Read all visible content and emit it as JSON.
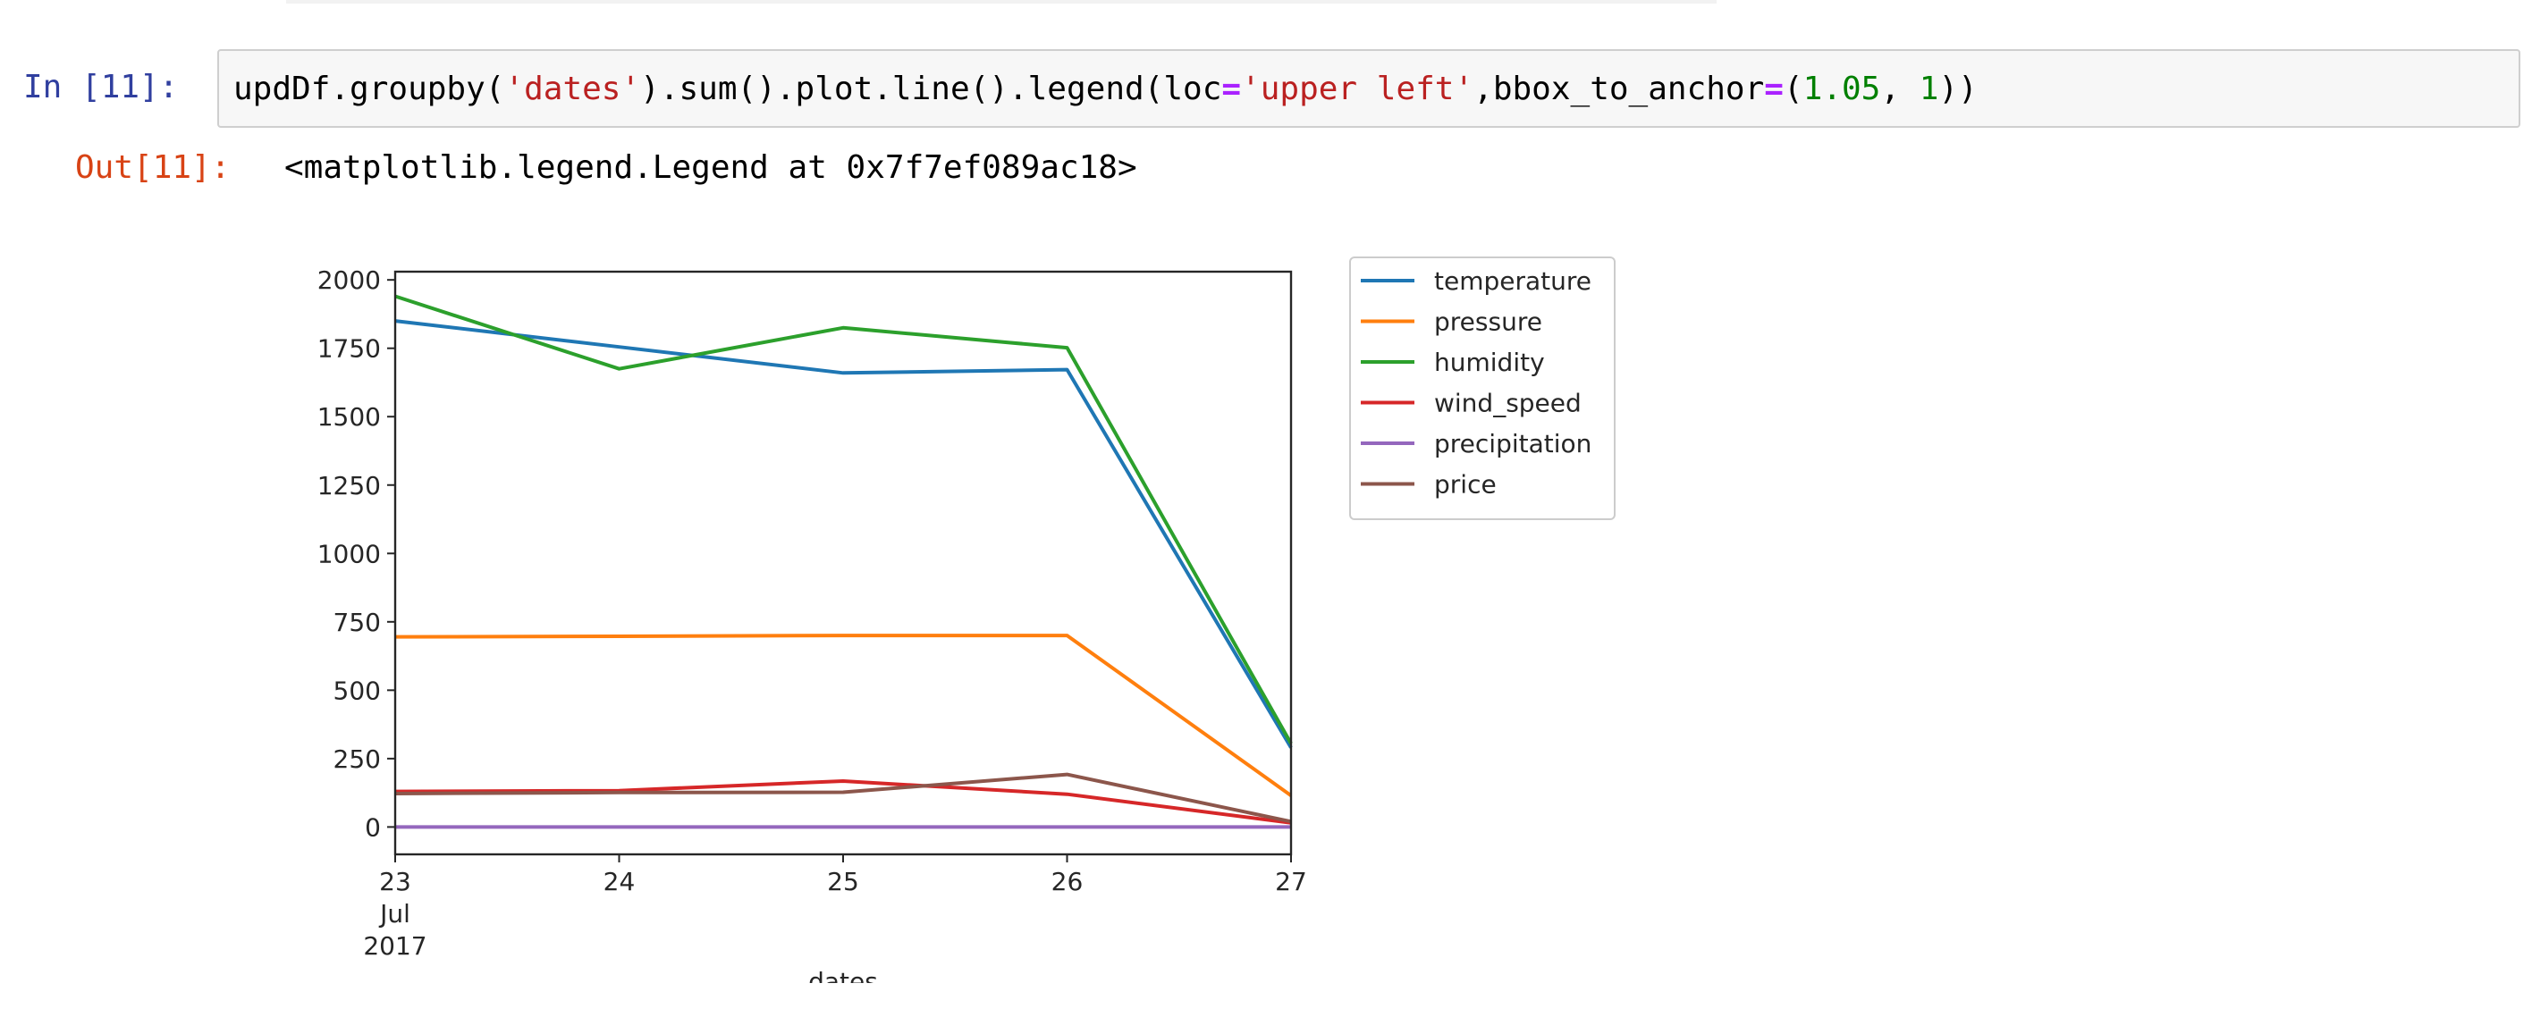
{
  "cell_in": {
    "prompt": "In [11]:",
    "code_tokens": [
      {
        "text": "updDf.groupby(",
        "kind": "plain"
      },
      {
        "text": "'dates'",
        "kind": "str"
      },
      {
        "text": ").sum().plot.line().legend(loc",
        "kind": "plain"
      },
      {
        "text": "=",
        "kind": "op"
      },
      {
        "text": "'upper left'",
        "kind": "str"
      },
      {
        "text": ",bbox_to_anchor",
        "kind": "plain"
      },
      {
        "text": "=",
        "kind": "op"
      },
      {
        "text": "(",
        "kind": "plain"
      },
      {
        "text": "1.05",
        "kind": "num"
      },
      {
        "text": ", ",
        "kind": "plain"
      },
      {
        "text": "1",
        "kind": "num"
      },
      {
        "text": "))",
        "kind": "plain"
      }
    ]
  },
  "cell_out": {
    "prompt": "Out[11]:",
    "text": "<matplotlib.legend.Legend at 0x7f7ef089ac18>"
  },
  "colors": {
    "temperature": "#1f77b4",
    "pressure": "#ff7f0e",
    "humidity": "#2ca02c",
    "wind_speed": "#d62728",
    "precipitation": "#9467bd",
    "price": "#8c564b"
  },
  "chart_data": {
    "type": "line",
    "x": [
      "2017-07-23",
      "2017-07-24",
      "2017-07-25",
      "2017-07-26",
      "2017-07-27"
    ],
    "x_tick_labels": [
      {
        "lines": [
          "23",
          "Jul",
          "2017"
        ]
      },
      {
        "lines": [
          "24"
        ]
      },
      {
        "lines": [
          "25"
        ]
      },
      {
        "lines": [
          "26"
        ]
      },
      {
        "lines": [
          "27"
        ]
      }
    ],
    "xlabel": "dates",
    "ylabel": "",
    "ylim": [
      -100,
      2030
    ],
    "yticks": [
      0,
      250,
      500,
      750,
      1000,
      1250,
      1500,
      1750,
      2000
    ],
    "grid": false,
    "legend": {
      "placement": "outside-upper-left"
    },
    "series": [
      {
        "name": "temperature",
        "color": "#1f77b4",
        "values": [
          1850,
          1755,
          1660,
          1672,
          290
        ]
      },
      {
        "name": "pressure",
        "color": "#ff7f0e",
        "values": [
          695,
          697,
          700,
          700,
          115
        ]
      },
      {
        "name": "humidity",
        "color": "#2ca02c",
        "values": [
          1940,
          1675,
          1825,
          1752,
          305
        ]
      },
      {
        "name": "wind_speed",
        "color": "#d62728",
        "values": [
          130,
          133,
          168,
          120,
          15
        ]
      },
      {
        "name": "precipitation",
        "color": "#9467bd",
        "values": [
          0,
          0,
          0,
          0,
          0
        ]
      },
      {
        "name": "price",
        "color": "#8c564b",
        "values": [
          122,
          126,
          127,
          192,
          20
        ]
      }
    ]
  }
}
